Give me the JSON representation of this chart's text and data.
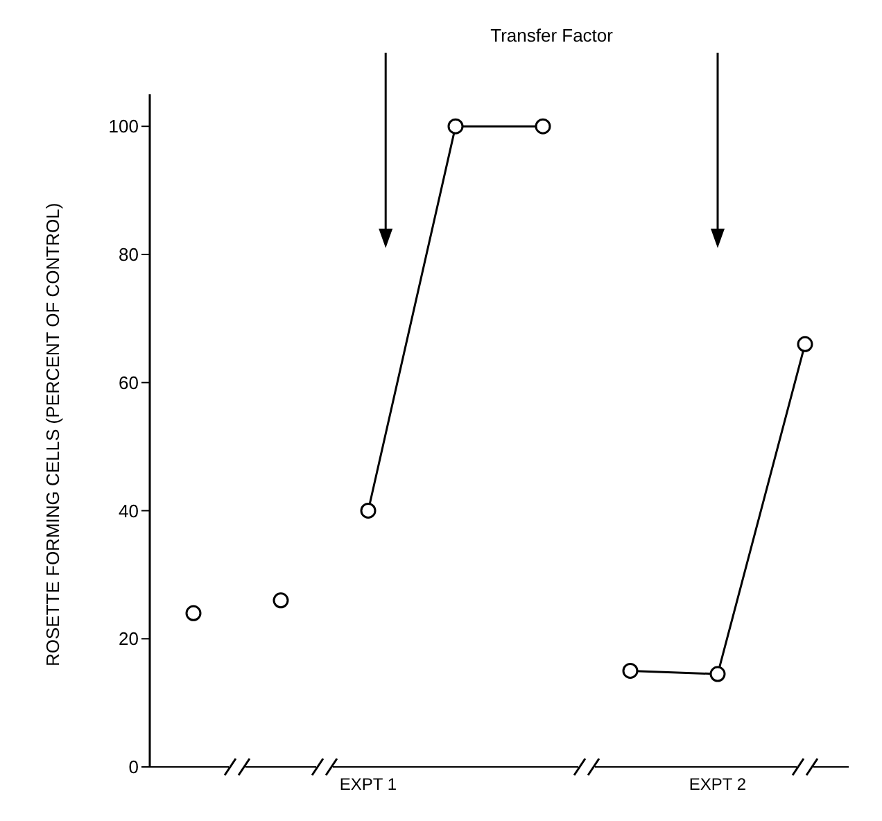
{
  "chart_data": {
    "type": "line",
    "ylabel": "ROSETTE FORMING CELLS (PERCENT OF CONTROL)",
    "annotations": [
      "Transfer Factor"
    ],
    "categories": [
      null,
      null,
      "EXPT 1",
      null,
      null,
      null,
      "EXPT 2",
      null
    ],
    "series": [
      {
        "type": "scatter",
        "color": "#000000",
        "values": [
          24,
          26,
          null,
          null,
          null,
          null,
          null,
          null
        ]
      },
      {
        "color": "#000000",
        "values": [
          null,
          null,
          40,
          100,
          100,
          null,
          null,
          null
        ]
      },
      {
        "color": "#000000",
        "values": [
          null,
          null,
          null,
          null,
          null,
          15,
          14.5,
          66
        ]
      }
    ],
    "ylim": [
      0,
      105
    ],
    "yticks": [
      0,
      20,
      40,
      60,
      80,
      100
    ],
    "grid": false,
    "marker": "circle",
    "line_style": "solid"
  }
}
